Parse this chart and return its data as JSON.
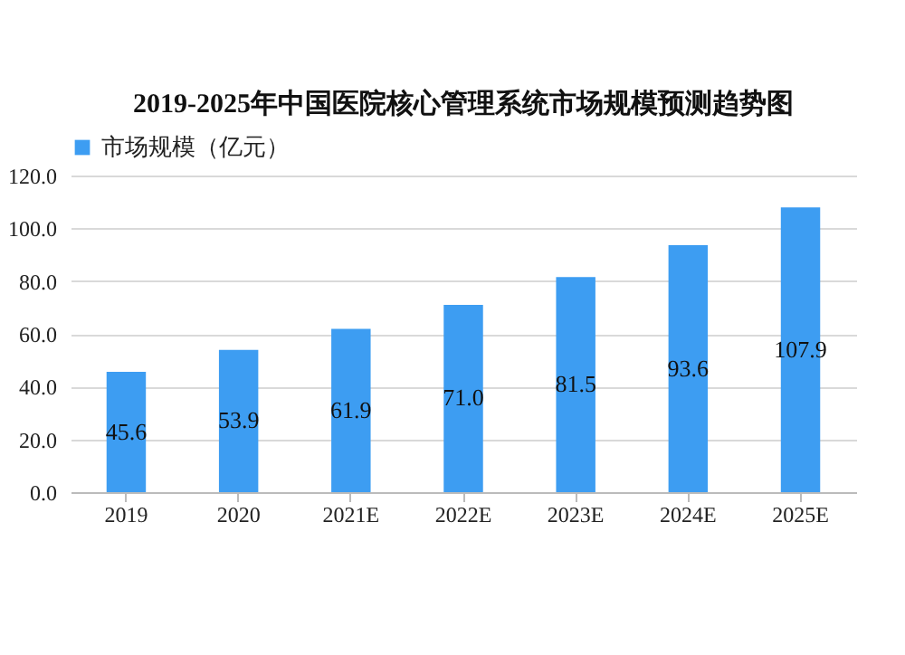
{
  "chart_data": {
    "type": "bar",
    "title": "2019-2025年中国医院核心管理系统市场规模预测趋势图",
    "categories": [
      "2019",
      "2020",
      "2021E",
      "2022E",
      "2023E",
      "2024E",
      "2025E"
    ],
    "series": [
      {
        "name": "市场规模（亿元）",
        "color": "#3d9df2",
        "values": [
          45.6,
          53.9,
          61.9,
          71.0,
          81.5,
          93.6,
          107.9
        ],
        "value_labels": [
          "45.6",
          "53.9",
          "61.9",
          "71.0",
          "81.5",
          "93.6",
          "107.9"
        ]
      }
    ],
    "ylim": [
      0,
      120
    ],
    "yticks": [
      {
        "value": 0,
        "label": "0.0"
      },
      {
        "value": 20,
        "label": "20.0"
      },
      {
        "value": 40,
        "label": "40.0"
      },
      {
        "value": 60,
        "label": "60.0"
      },
      {
        "value": 80,
        "label": "80.0"
      },
      {
        "value": 100,
        "label": "100.0"
      },
      {
        "value": 120,
        "label": "120.0"
      }
    ],
    "grid": "y",
    "legend": "top"
  }
}
